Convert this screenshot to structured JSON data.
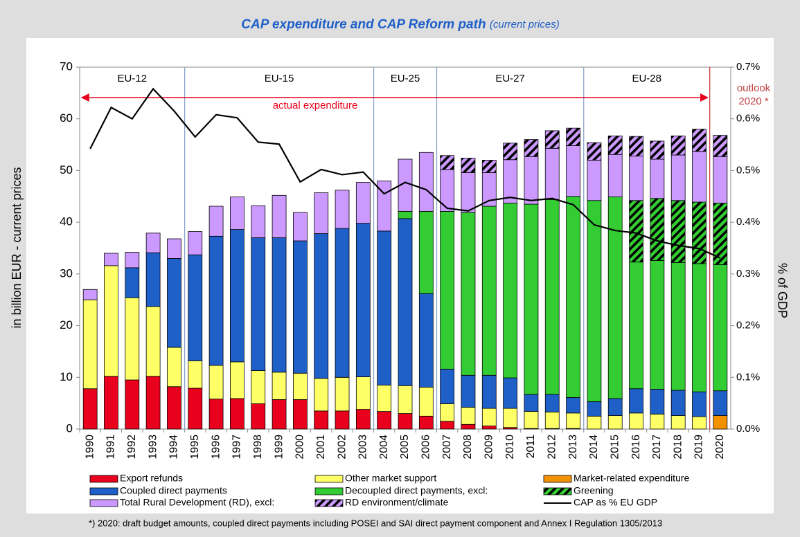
{
  "chart_data": {
    "type": "bar",
    "stacked": true,
    "title": "CAP expenditure and CAP Reform path",
    "subtitle": "(current prices)",
    "y_label": "in billion EUR - current prices",
    "y2_label": "% of GDP",
    "eras": [
      "EU-12",
      "EU-15",
      "EU-25",
      "EU-27",
      "EU-28"
    ],
    "actual_label": "actual expenditure",
    "outlook_lines": [
      "outlook",
      "2020 *"
    ],
    "footnote": "*) 2020: draft budget amounts, coupled direct payments including POSEI and SAI direct payment component and Annex I Regulation 1305/2013",
    "categories": [
      "1990",
      "1991",
      "1992",
      "1993",
      "1994",
      "1995",
      "1996",
      "1997",
      "1998",
      "1999",
      "2000",
      "2001",
      "2002",
      "2003",
      "2004",
      "2005",
      "2006",
      "2007",
      "2008",
      "2009",
      "2010",
      "2011",
      "2012",
      "2013",
      "2014",
      "2015",
      "2016",
      "2017",
      "2018",
      "2019",
      "2020"
    ],
    "ylim": [
      0,
      70
    ],
    "yticks": [
      0,
      10,
      20,
      30,
      40,
      50,
      60,
      70
    ],
    "y2lim": [
      0,
      0.7
    ],
    "y2ticks": [
      {
        "value": 0,
        "label": "0.0%"
      },
      {
        "value": 0.1,
        "label": "0.1%"
      },
      {
        "value": 0.2,
        "label": "0.2%"
      },
      {
        "value": 0.3,
        "label": "0.3%"
      },
      {
        "value": 0.4,
        "label": "0.4%"
      },
      {
        "value": 0.5,
        "label": "0.5%"
      },
      {
        "value": 0.6,
        "label": "0.6%"
      },
      {
        "value": 0.7,
        "label": "0.7%"
      }
    ],
    "series": [
      {
        "name": "Export refunds",
        "color": "#e8001c",
        "values": [
          7.8,
          10.2,
          9.5,
          10.2,
          8.2,
          7.9,
          5.8,
          5.9,
          4.9,
          5.7,
          5.7,
          3.5,
          3.5,
          3.8,
          3.4,
          3.0,
          2.5,
          1.5,
          0.9,
          0.6,
          0.3,
          0.1,
          0.1,
          0.1,
          0,
          0,
          null,
          null,
          null,
          null,
          null
        ]
      },
      {
        "name": "Other market support",
        "color": "#ffff66",
        "values": [
          17.2,
          21.4,
          15.9,
          13.5,
          7.6,
          5.3,
          6.5,
          7.1,
          6.4,
          5.3,
          5.1,
          6.3,
          6.5,
          6.3,
          5.1,
          5.4,
          5.6,
          3.4,
          3.3,
          3.4,
          3.7,
          3.3,
          3.2,
          3.0,
          2.5,
          2.6,
          3.1,
          2.9,
          2.6,
          2.4,
          null
        ]
      },
      {
        "name": "Market-related expenditure",
        "color": "#f39200",
        "values": [
          null,
          null,
          null,
          null,
          null,
          null,
          null,
          null,
          null,
          null,
          null,
          null,
          null,
          null,
          null,
          null,
          null,
          null,
          null,
          null,
          null,
          null,
          null,
          null,
          null,
          null,
          null,
          null,
          null,
          null,
          2.6
        ]
      },
      {
        "name": "Coupled direct payments",
        "color": "#1f5fc8",
        "values": [
          null,
          null,
          5.8,
          10.4,
          17.2,
          20.5,
          25.0,
          25.6,
          25.7,
          26.0,
          25.6,
          28.0,
          28.8,
          29.7,
          29.8,
          32.3,
          18.1,
          6.7,
          6.2,
          6.4,
          5.9,
          3.3,
          3.4,
          3.0,
          2.8,
          3.3,
          4.7,
          4.8,
          4.9,
          4.8,
          4.8
        ]
      },
      {
        "name": "Decoupled direct payments, excl:",
        "color": "#33cc33",
        "values": [
          null,
          null,
          null,
          null,
          null,
          null,
          null,
          null,
          null,
          null,
          null,
          null,
          null,
          null,
          null,
          1.4,
          15.9,
          30.5,
          31.5,
          32.7,
          33.8,
          36.8,
          37.7,
          38.9,
          38.9,
          39.0,
          24.5,
          24.9,
          24.7,
          24.8,
          24.4
        ]
      },
      {
        "name": "Greening",
        "color": "#33cc33",
        "hatch": true,
        "values": [
          null,
          null,
          null,
          null,
          null,
          null,
          null,
          null,
          null,
          null,
          null,
          null,
          null,
          null,
          null,
          null,
          null,
          null,
          null,
          null,
          null,
          null,
          null,
          null,
          null,
          null,
          11.9,
          12.0,
          12.0,
          11.9,
          11.9
        ]
      },
      {
        "name": "Total Rural Development (RD), excl:",
        "color": "#cc99ff",
        "values": [
          2.0,
          2.4,
          3.0,
          3.8,
          3.8,
          4.5,
          5.8,
          6.3,
          6.2,
          8.2,
          5.5,
          7.9,
          7.4,
          7.9,
          9.7,
          10.1,
          11.4,
          8.1,
          7.7,
          6.5,
          8.4,
          9.2,
          9.9,
          9.8,
          7.8,
          8.2,
          8.6,
          7.6,
          8.8,
          9.8,
          9.0
        ]
      },
      {
        "name": "RD environment/climate",
        "color": "#cc99ff",
        "hatch": true,
        "values": [
          null,
          null,
          null,
          null,
          null,
          null,
          null,
          null,
          null,
          null,
          null,
          null,
          null,
          null,
          null,
          null,
          null,
          2.7,
          2.8,
          2.4,
          3.2,
          3.3,
          3.4,
          3.4,
          3.4,
          3.6,
          3.8,
          3.5,
          3.7,
          4.3,
          4.1
        ]
      },
      {
        "name": "CAP as % EU GDP",
        "color": "#000000",
        "type": "line",
        "axis": "y2",
        "values": [
          0.542,
          0.622,
          0.6,
          0.658,
          0.615,
          0.565,
          0.608,
          0.602,
          0.555,
          0.551,
          0.478,
          0.502,
          0.492,
          0.497,
          0.455,
          0.477,
          0.463,
          0.427,
          0.422,
          0.442,
          0.448,
          0.442,
          0.446,
          0.434,
          0.395,
          0.384,
          0.379,
          0.364,
          0.355,
          0.349,
          0.331
        ]
      }
    ]
  }
}
